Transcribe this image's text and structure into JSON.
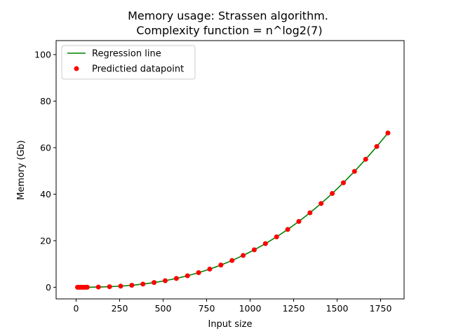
{
  "chart_data": {
    "type": "scatter",
    "title": "Memory usage: Strassen algorithm.",
    "subtitle": "Complexity function = n^log2(7)",
    "xlabel": "Input size",
    "ylabel": "Memory (Gb)",
    "xlim": [
      -115,
      1885
    ],
    "ylim": [
      -5,
      106
    ],
    "xticks": [
      0,
      250,
      500,
      750,
      1000,
      1250,
      1500,
      1750
    ],
    "yticks": [
      0,
      20,
      40,
      60,
      80,
      100
    ],
    "grid": false,
    "legend_position": "top-left",
    "series": [
      {
        "name": "Regression line",
        "kind": "line",
        "color": "#008000",
        "x": [
          0,
          64,
          128,
          192,
          256,
          320,
          384,
          448,
          512,
          576,
          640,
          704,
          768,
          832,
          896,
          960,
          1024,
          1088,
          1152,
          1216,
          1280,
          1344,
          1408,
          1472,
          1536,
          1600,
          1664,
          1728,
          1792
        ],
        "y": [
          0,
          0.02,
          0.09,
          0.24,
          0.49,
          0.86,
          1.37,
          2.02,
          2.82,
          3.79,
          4.94,
          6.27,
          7.8,
          9.54,
          11.49,
          13.67,
          16.09,
          18.75,
          21.66,
          24.84,
          28.28,
          32.0,
          36.0,
          40.3,
          44.9,
          49.8,
          55.0,
          60.5,
          66.3
        ]
      },
      {
        "name": "Predictied datapoint",
        "kind": "scatter",
        "color": "#ff0000",
        "x": [
          8,
          16,
          24,
          32,
          40,
          48,
          56,
          64,
          128,
          192,
          256,
          320,
          384,
          448,
          512,
          576,
          640,
          704,
          768,
          832,
          896,
          960,
          1024,
          1088,
          1152,
          1216,
          1280,
          1344,
          1408,
          1472,
          1536,
          1600,
          1664,
          1728,
          1792
        ],
        "y": [
          0,
          0,
          0,
          0,
          0,
          0.01,
          0.01,
          0.02,
          0.09,
          0.24,
          0.49,
          0.86,
          1.37,
          2.02,
          2.82,
          3.79,
          4.94,
          6.27,
          7.8,
          9.54,
          11.49,
          13.67,
          16.09,
          18.75,
          21.66,
          24.84,
          28.28,
          32.0,
          36.0,
          40.3,
          44.9,
          49.8,
          55.0,
          60.5,
          66.3
        ]
      }
    ]
  }
}
